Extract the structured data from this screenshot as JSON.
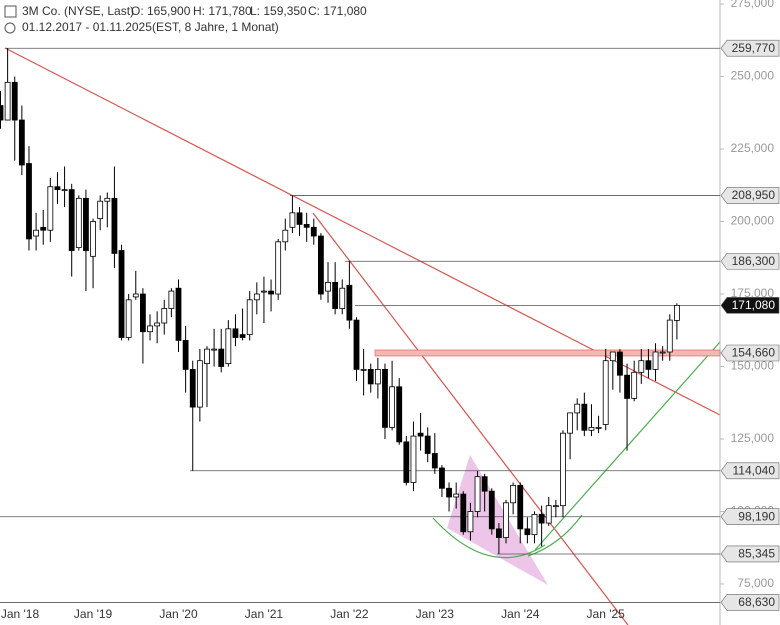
{
  "header": {
    "name": "3M Co. (NYSE, Last)",
    "open": "O: 165,900",
    "high": "H: 171,780",
    "low": "L: 159,350",
    "close": "C: 171,080",
    "range": "01.12.2017 - 01.11.2025",
    "info": "(EST, 8 Jahre, 1 Monat)"
  },
  "chart_data": {
    "type": "candlestick",
    "categories": [
      null,
      "Jan '18",
      null,
      null,
      null,
      null,
      null,
      null,
      null,
      null,
      null,
      null,
      null,
      "Jan '19",
      null,
      null,
      null,
      null,
      null,
      null,
      null,
      null,
      null,
      null,
      null,
      "Jan '20",
      null,
      null,
      null,
      null,
      null,
      null,
      null,
      null,
      null,
      null,
      null,
      "Jan '21",
      null,
      null,
      null,
      null,
      null,
      null,
      null,
      null,
      null,
      null,
      null,
      "Jan '22",
      null,
      null,
      null,
      null,
      null,
      null,
      null,
      null,
      null,
      null,
      null,
      "Jan '23",
      null,
      null,
      null,
      null,
      null,
      null,
      null,
      null,
      null,
      null,
      null,
      "Jan '24",
      null,
      null,
      null,
      null,
      null,
      null,
      null,
      null,
      null,
      null,
      null,
      "Jan '25",
      null,
      null,
      null,
      null,
      null,
      null,
      null,
      null,
      null,
      null
    ],
    "open": [
      240,
      235,
      248,
      235,
      220,
      195,
      198,
      197,
      212,
      211,
      211,
      191,
      208,
      188,
      201,
      207,
      208,
      190,
      160,
      174,
      175,
      162,
      164,
      165,
      170,
      177,
      159,
      149,
      136,
      151,
      156,
      156,
      151,
      163,
      161,
      161,
      173,
      176,
      176,
      175,
      193,
      198,
      203,
      199,
      198,
      195,
      176,
      179,
      170,
      178,
      166,
      149,
      149,
      144,
      149,
      129,
      143,
      124,
      110,
      127,
      126,
      120,
      115,
      108,
      105,
      106,
      93,
      100,
      112,
      107,
      94,
      91,
      103,
      109,
      94,
      92,
      99,
      96,
      102,
      102,
      127,
      134,
      137,
      128,
      129,
      130,
      152,
      155,
      147,
      139,
      148,
      152,
      149,
      155,
      155,
      165.9
    ],
    "high": [
      245,
      259.77,
      250,
      240,
      226,
      203,
      204,
      215,
      217,
      219,
      213,
      209,
      211,
      201,
      209,
      210,
      219,
      192,
      175,
      183,
      177,
      168,
      169,
      173,
      177,
      180,
      164,
      152,
      156,
      157,
      163,
      163,
      166,
      168,
      170,
      176,
      179,
      181,
      180,
      194,
      201,
      208.95,
      205,
      203,
      201,
      196,
      186,
      186,
      180,
      186.3,
      167,
      156,
      151,
      153,
      151,
      152,
      146,
      126,
      131,
      134,
      129,
      127,
      116,
      110,
      110,
      107,
      103,
      114,
      113,
      108,
      96,
      104,
      110,
      110,
      98,
      100,
      102,
      105,
      104,
      128,
      134,
      139,
      141,
      137,
      133,
      156,
      155,
      156,
      151,
      152,
      156,
      156,
      158,
      157,
      168,
      171.78
    ],
    "low": [
      232,
      235,
      221,
      216,
      190,
      190,
      192,
      193,
      206,
      205,
      181,
      190,
      176,
      177,
      197,
      198,
      184,
      159,
      159,
      173,
      151,
      159,
      158,
      161,
      167,
      155,
      141,
      114.04,
      131,
      136,
      150,
      148,
      150,
      157,
      159,
      159,
      168,
      165,
      169,
      173,
      190,
      196,
      195,
      193,
      192,
      173,
      172,
      168,
      168,
      163,
      145,
      140,
      141,
      139,
      125,
      128,
      123,
      109,
      107,
      121,
      117,
      113,
      105,
      100,
      101,
      92,
      90,
      98,
      100,
      92,
      85.345,
      89,
      99,
      89,
      89,
      89,
      88,
      95,
      98,
      98,
      118,
      128,
      126,
      126,
      127,
      128,
      142,
      141,
      121,
      138,
      144,
      146,
      145,
      152,
      152,
      159.35
    ],
    "close": [
      235,
      248,
      235,
      219.5,
      194,
      197,
      197,
      212,
      211,
      211,
      190,
      208,
      190,
      200,
      207,
      208,
      189,
      160,
      173,
      175,
      162,
      164,
      165,
      170,
      176,
      159,
      149,
      136,
      152,
      156,
      156,
      150,
      163,
      160,
      160,
      173,
      175,
      176,
      175,
      193,
      197,
      203,
      199,
      198,
      195,
      175,
      179,
      170,
      177,
      166,
      149,
      149,
      144,
      149,
      129,
      143,
      124,
      110,
      126,
      126,
      120,
      115,
      108,
      105,
      106,
      93,
      100,
      112,
      107,
      94,
      91,
      103,
      109,
      94,
      92,
      99,
      96,
      102,
      102,
      127,
      134,
      137,
      128,
      129,
      129,
      152,
      155,
      147,
      139,
      148,
      152,
      149,
      155,
      155,
      166,
      171.08
    ],
    "up_color": "#ffffff",
    "down_color": "#000000",
    "ylim": [
      67.4,
      276.4
    ],
    "yticks": [
      {
        "value": 75,
        "label": "75,000"
      },
      {
        "value": 100,
        "label": "100,000"
      },
      {
        "value": 125,
        "label": "125,000"
      },
      {
        "value": 150,
        "label": "150,000"
      },
      {
        "value": 175,
        "label": "175,000"
      },
      {
        "value": 200,
        "label": "200,000"
      },
      {
        "value": 225,
        "label": "225,000"
      },
      {
        "value": 250,
        "label": "250,000"
      },
      {
        "value": 275,
        "label": "275,000"
      }
    ],
    "levels": [
      {
        "value": 259.77,
        "label": "259,770"
      },
      {
        "value": 208.95,
        "label": "208,950"
      },
      {
        "value": 186.3,
        "label": "186,300"
      },
      {
        "value": 171.08,
        "label": "171,080"
      },
      {
        "value": 154.66,
        "label": "154,660"
      },
      {
        "value": 114.04,
        "label": "114,040"
      },
      {
        "value": 98.19,
        "label": "98,190"
      },
      {
        "value": 85.345,
        "label": "85,345"
      },
      {
        "value": 68.63,
        "label": "68,630"
      }
    ]
  }
}
